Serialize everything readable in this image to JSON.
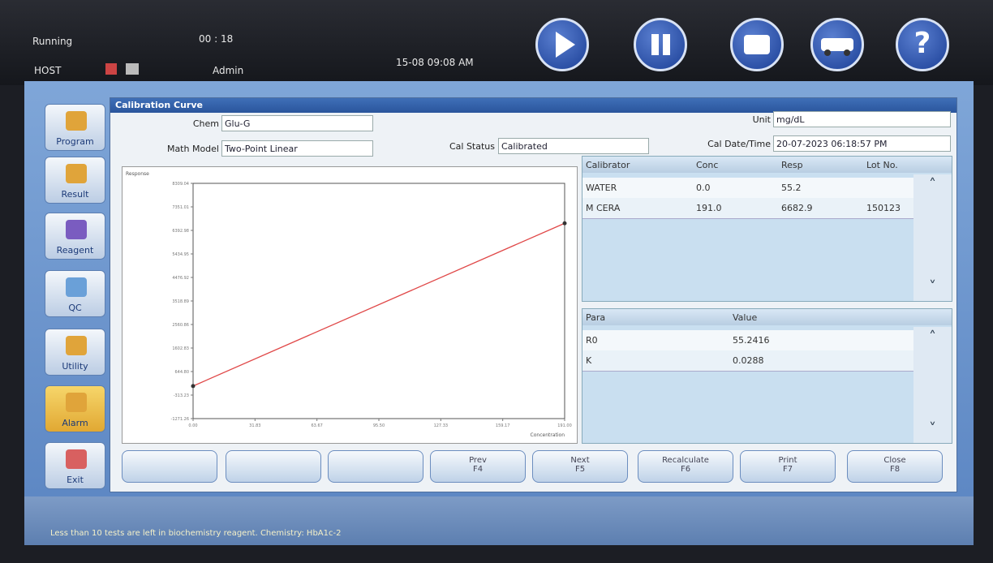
{
  "status": {
    "state": "Running",
    "timer": "00 : 18",
    "host": "HOST",
    "user": "Admin",
    "datetime": "15-08 09:08 AM"
  },
  "toolbar": {
    "help": "?"
  },
  "sidebar": [
    "Program",
    "Result",
    "Reagent",
    "QC",
    "Utility",
    "Alarm",
    "Exit"
  ],
  "panel": {
    "title": "Calibration Curve",
    "fields": [
      {
        "label": "Chem",
        "value": "Glu-G"
      },
      {
        "label": "Math Model",
        "value": "Two-Point Linear"
      },
      {
        "label": "Cal Status",
        "value": "Calibrated"
      },
      {
        "label": "Unit",
        "value": "mg/dL"
      },
      {
        "label": "Cal Date/Time",
        "value": "20-07-2023 06:18:57 PM"
      }
    ]
  },
  "calibrators": {
    "headers": [
      "Calibrator",
      "Conc",
      "Resp",
      "Lot No."
    ],
    "rows": [
      [
        "WATER",
        "0.0",
        "55.2"
      ],
      [
        "M CERA",
        "191.0",
        "6682.9",
        "150123"
      ]
    ]
  },
  "params": {
    "headers": [
      "Para",
      "Value"
    ],
    "rows": [
      [
        "R0",
        "55.2416"
      ],
      [
        "K",
        "0.0288"
      ]
    ]
  },
  "buttons": [
    {
      "label": "Prev",
      "key": "F4"
    },
    {
      "label": "Next",
      "key": "F5"
    },
    {
      "label": "Recalculate",
      "key": "F6"
    },
    {
      "label": "Print",
      "key": "F7"
    },
    {
      "label": "Close",
      "key": "F8"
    }
  ],
  "message": "Less than 10 tests are left in biochemistry reagent. Chemistry: HbA1c-2",
  "chart_data": {
    "type": "line",
    "y_label": "Response",
    "x_label": "Concentration",
    "x": [
      0,
      191
    ],
    "values": [
      55.2,
      6682.9
    ],
    "color": "#e04848",
    "xlim": [
      0,
      191
    ],
    "xticks": [
      {
        "value": 0,
        "label": "0.00"
      },
      31.83,
      63.67,
      {
        "value": 95.5,
        "label": "95.50"
      },
      127.33,
      159.17,
      {
        "value": 191,
        "label": "191.00"
      }
    ],
    "ylim": [
      -1271.26,
      8309.04
    ],
    "yticks": [
      {
        "value": -1271.26,
        "label": "-1271.26"
      },
      -313.23,
      {
        "value": 644.8,
        "label": "644.80"
      },
      1602.83,
      2560.86,
      3518.89,
      4476.92,
      5434.95,
      6392.98,
      7351.01,
      8309.04
    ],
    "grid": false
  }
}
